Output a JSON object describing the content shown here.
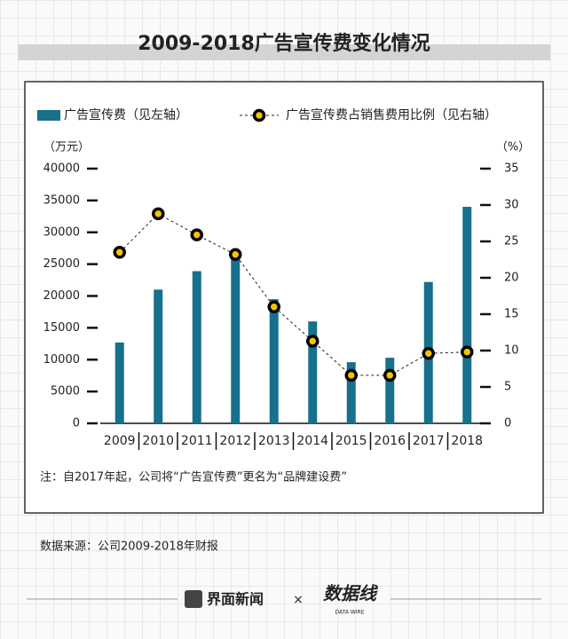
{
  "chart_data": {
    "type": "bar-line",
    "title": "2009-2018广告宣传费变化情况",
    "categories": [
      "2009",
      "2010",
      "2011",
      "2012",
      "2013",
      "2014",
      "2015",
      "2016",
      "2017",
      "2018"
    ],
    "series": [
      {
        "name": "广告宣传费（见左轴）",
        "type": "bar",
        "color": "#17708c",
        "values": [
          12700,
          21000,
          23900,
          26200,
          19500,
          16000,
          9600,
          10300,
          22200,
          34000
        ]
      },
      {
        "name": "广告宣传费占销售费用比例（见右轴）",
        "type": "line",
        "axis": "y2",
        "color": "#222222",
        "marker_color": "#f5c400",
        "values": [
          23.5,
          28.8,
          25.9,
          23.2,
          16.0,
          11.3,
          6.6,
          6.6,
          9.6,
          9.8
        ]
      }
    ],
    "y_label": "（万元）",
    "y2_label": "（%）",
    "ylim": [
      0,
      40000
    ],
    "yticks": [
      0,
      5000,
      10000,
      15000,
      20000,
      25000,
      30000,
      35000,
      40000
    ],
    "y2lim": [
      0,
      35
    ],
    "y2ticks": [
      0,
      5,
      10,
      15,
      20,
      25,
      30,
      35
    ],
    "note": "注：自2017年起，公司将“广告宣传费”更名为“品牌建设费”",
    "source": "数据来源：公司2009-2018年财报"
  },
  "footer": {
    "brand": "界面新闻",
    "separator": "×",
    "partner": "数据线",
    "partner_sub": "DATA WIRE"
  }
}
